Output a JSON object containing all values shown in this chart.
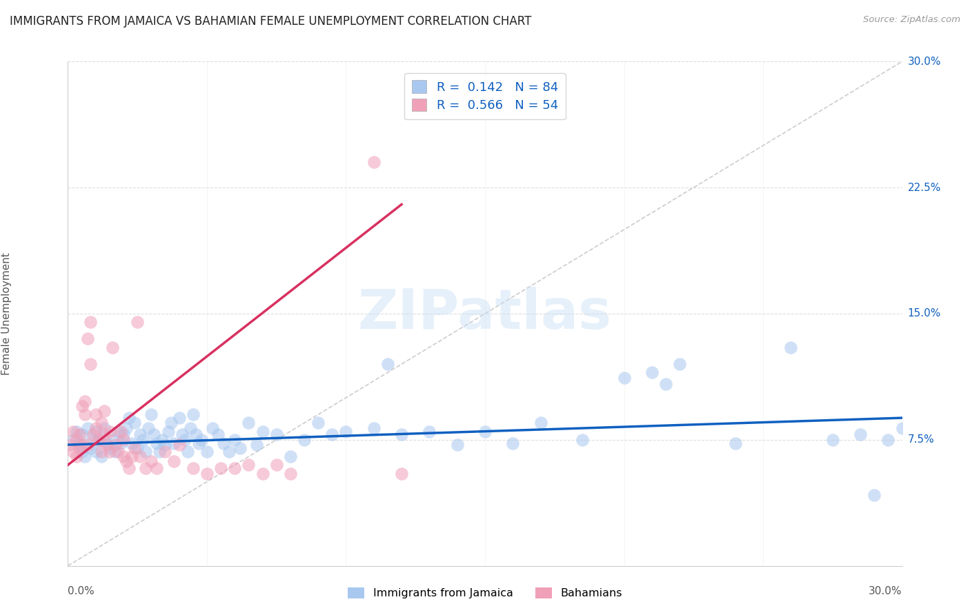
{
  "title": "IMMIGRANTS FROM JAMAICA VS BAHAMIAN FEMALE UNEMPLOYMENT CORRELATION CHART",
  "source": "Source: ZipAtlas.com",
  "ylabel": "Female Unemployment",
  "color_blue": "#A8C8F0",
  "color_pink": "#F0A0B8",
  "trendline_blue": "#1060C0",
  "trendline_pink": "#D83060",
  "trendline_gray": "#CCCCCC",
  "background": "#FFFFFF",
  "xlim": [
    0.0,
    0.3
  ],
  "ylim": [
    0.0,
    0.3
  ],
  "jamaica_x": [
    0.002,
    0.003,
    0.004,
    0.005,
    0.005,
    0.006,
    0.007,
    0.008,
    0.009,
    0.01,
    0.01,
    0.011,
    0.012,
    0.013,
    0.014,
    0.015,
    0.016,
    0.017,
    0.018,
    0.019,
    0.02,
    0.021,
    0.022,
    0.023,
    0.024,
    0.025,
    0.026,
    0.027,
    0.028,
    0.029,
    0.03,
    0.031,
    0.032,
    0.033,
    0.034,
    0.035,
    0.036,
    0.037,
    0.038,
    0.04,
    0.041,
    0.042,
    0.043,
    0.044,
    0.045,
    0.046,
    0.047,
    0.048,
    0.05,
    0.052,
    0.054,
    0.056,
    0.058,
    0.06,
    0.062,
    0.065,
    0.068,
    0.07,
    0.075,
    0.08,
    0.085,
    0.09,
    0.095,
    0.1,
    0.11,
    0.115,
    0.12,
    0.13,
    0.14,
    0.15,
    0.16,
    0.17,
    0.185,
    0.2,
    0.21,
    0.215,
    0.22,
    0.24,
    0.26,
    0.275,
    0.285,
    0.29,
    0.295,
    0.3
  ],
  "jamaica_y": [
    0.075,
    0.08,
    0.072,
    0.068,
    0.078,
    0.065,
    0.082,
    0.07,
    0.075,
    0.068,
    0.08,
    0.075,
    0.065,
    0.082,
    0.073,
    0.07,
    0.075,
    0.068,
    0.08,
    0.073,
    0.078,
    0.082,
    0.088,
    0.073,
    0.085,
    0.07,
    0.078,
    0.075,
    0.068,
    0.082,
    0.09,
    0.078,
    0.073,
    0.068,
    0.075,
    0.072,
    0.08,
    0.085,
    0.073,
    0.088,
    0.078,
    0.075,
    0.068,
    0.082,
    0.09,
    0.078,
    0.073,
    0.075,
    0.068,
    0.082,
    0.078,
    0.073,
    0.068,
    0.075,
    0.07,
    0.085,
    0.072,
    0.08,
    0.078,
    0.065,
    0.075,
    0.085,
    0.078,
    0.08,
    0.082,
    0.12,
    0.078,
    0.08,
    0.072,
    0.08,
    0.073,
    0.085,
    0.075,
    0.112,
    0.115,
    0.108,
    0.12,
    0.073,
    0.13,
    0.075,
    0.078,
    0.042,
    0.075,
    0.082
  ],
  "bahamian_x": [
    0.001,
    0.002,
    0.002,
    0.003,
    0.003,
    0.004,
    0.004,
    0.005,
    0.005,
    0.006,
    0.006,
    0.007,
    0.007,
    0.008,
    0.008,
    0.009,
    0.01,
    0.01,
    0.011,
    0.012,
    0.012,
    0.013,
    0.013,
    0.014,
    0.015,
    0.015,
    0.016,
    0.017,
    0.018,
    0.019,
    0.02,
    0.02,
    0.021,
    0.022,
    0.023,
    0.024,
    0.025,
    0.026,
    0.028,
    0.03,
    0.032,
    0.035,
    0.038,
    0.04,
    0.045,
    0.05,
    0.055,
    0.06,
    0.065,
    0.07,
    0.075,
    0.08,
    0.11,
    0.12
  ],
  "bahamian_y": [
    0.072,
    0.068,
    0.08,
    0.065,
    0.075,
    0.078,
    0.07,
    0.095,
    0.072,
    0.098,
    0.09,
    0.135,
    0.072,
    0.145,
    0.12,
    0.078,
    0.082,
    0.09,
    0.075,
    0.068,
    0.085,
    0.092,
    0.078,
    0.072,
    0.08,
    0.068,
    0.13,
    0.072,
    0.068,
    0.08,
    0.075,
    0.065,
    0.062,
    0.058,
    0.065,
    0.07,
    0.145,
    0.065,
    0.058,
    0.062,
    0.058,
    0.068,
    0.062,
    0.072,
    0.058,
    0.055,
    0.058,
    0.058,
    0.06,
    0.055,
    0.06,
    0.055,
    0.24,
    0.055
  ],
  "jamaica_trendline": [
    0.06,
    0.085
  ],
  "bahamian_trendline_x": [
    0.0,
    0.12
  ],
  "bahamian_trendline_y": [
    0.06,
    0.215
  ],
  "blue_trend_x": [
    0.0,
    0.3
  ],
  "blue_trend_y": [
    0.072,
    0.088
  ]
}
